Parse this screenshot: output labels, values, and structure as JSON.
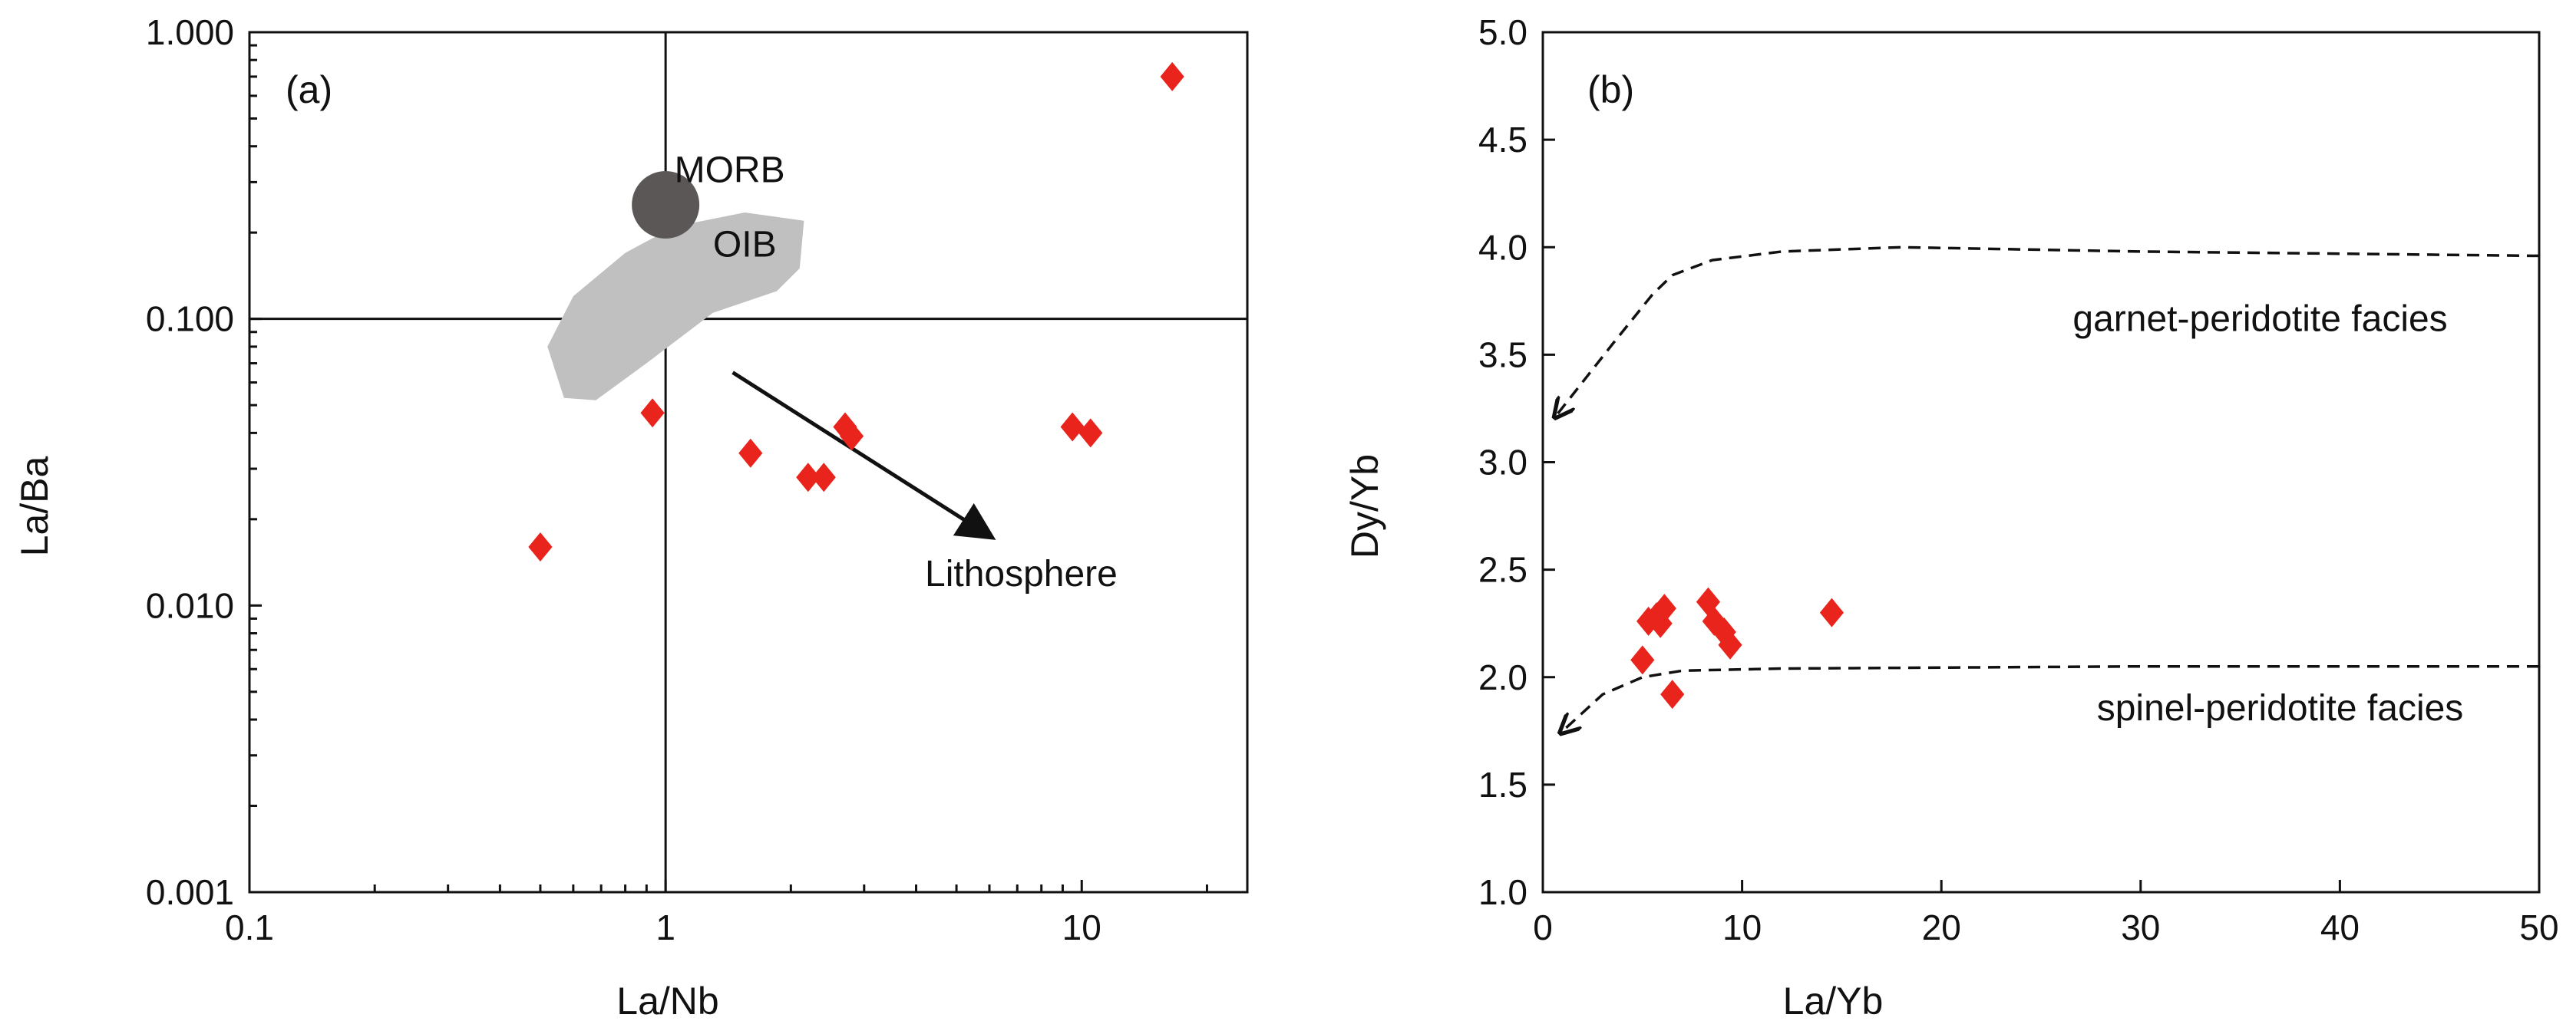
{
  "colors": {
    "marker": "#e8241c",
    "morb": "#5a5756",
    "oib": "#c0c0c0",
    "axis": "#111111"
  },
  "chart_data": [
    {
      "type": "scatter",
      "panel_label": "(a)",
      "xlabel": "La/Nb",
      "ylabel": "La/Ba",
      "xscale": "log",
      "yscale": "log",
      "xlim": [
        0.1,
        25
      ],
      "ylim": [
        0.001,
        1
      ],
      "x_tick_labels": [
        {
          "value": 0.1,
          "label": "0.1"
        },
        {
          "value": 1,
          "label": "1"
        },
        {
          "value": 10,
          "label": "10"
        }
      ],
      "y_tick_labels": [
        {
          "value": 0.001,
          "label": "0.001"
        },
        {
          "value": 0.01,
          "label": "0.010"
        },
        {
          "value": 0.1,
          "label": "0.100"
        },
        {
          "value": 1,
          "label": "1.000"
        }
      ],
      "reference_lines": [
        {
          "orientation": "vertical",
          "value": 1
        },
        {
          "orientation": "horizontal",
          "value": 0.1
        }
      ],
      "points": [
        {
          "x": 0.5,
          "y": 0.016
        },
        {
          "x": 0.93,
          "y": 0.047
        },
        {
          "x": 1.6,
          "y": 0.034
        },
        {
          "x": 2.2,
          "y": 0.028
        },
        {
          "x": 2.4,
          "y": 0.028
        },
        {
          "x": 2.7,
          "y": 0.042
        },
        {
          "x": 2.8,
          "y": 0.039
        },
        {
          "x": 9.5,
          "y": 0.042
        },
        {
          "x": 10.5,
          "y": 0.04
        },
        {
          "x": 16.5,
          "y": 0.7
        }
      ],
      "fields": [
        {
          "name": "MORB",
          "label": "MORB",
          "shape": "circle",
          "center": {
            "x": 1.0,
            "y": 0.25
          },
          "label_at": {
            "x": 1.05,
            "y": 0.3
          }
        },
        {
          "name": "OIB",
          "label": "OIB",
          "shape": "polygon",
          "vertices": [
            [
              0.52,
              0.08
            ],
            [
              0.6,
              0.12
            ],
            [
              0.8,
              0.17
            ],
            [
              1.05,
              0.21
            ],
            [
              1.55,
              0.235
            ],
            [
              2.15,
              0.22
            ],
            [
              2.1,
              0.15
            ],
            [
              1.85,
              0.125
            ],
            [
              1.3,
              0.105
            ],
            [
              0.9,
              0.07
            ],
            [
              0.68,
              0.052
            ],
            [
              0.57,
              0.053
            ]
          ],
          "label_at": {
            "x": 1.3,
            "y": 0.165
          }
        }
      ],
      "annotations": [
        {
          "text": "Lithosphere",
          "x": 4.2,
          "y": 0.0117,
          "arrow": {
            "from": [
              1.45,
              0.065
            ],
            "to": [
              6.0,
              0.0175
            ]
          }
        }
      ]
    },
    {
      "type": "scatter",
      "panel_label": "(b)",
      "xlabel": "La/Yb",
      "ylabel": "Dy/Yb",
      "xlim": [
        0,
        50
      ],
      "ylim": [
        1.0,
        5.0
      ],
      "x_ticks": [
        0,
        10,
        20,
        30,
        40,
        50
      ],
      "x_tick_labels": [
        "0",
        "10",
        "20",
        "30",
        "40",
        "50"
      ],
      "y_ticks": [
        1.0,
        1.5,
        2.0,
        2.5,
        3.0,
        3.5,
        4.0,
        4.5,
        5.0
      ],
      "y_tick_labels": [
        "1.0",
        "1.5",
        "2.0",
        "2.5",
        "3.0",
        "3.5",
        "4.0",
        "4.5",
        "5.0"
      ],
      "points": [
        {
          "x": 5.0,
          "y": 2.08
        },
        {
          "x": 5.3,
          "y": 2.26
        },
        {
          "x": 5.7,
          "y": 2.28
        },
        {
          "x": 5.9,
          "y": 2.25
        },
        {
          "x": 6.1,
          "y": 2.32
        },
        {
          "x": 6.5,
          "y": 1.92
        },
        {
          "x": 8.3,
          "y": 2.35
        },
        {
          "x": 8.6,
          "y": 2.26
        },
        {
          "x": 9.1,
          "y": 2.21
        },
        {
          "x": 9.4,
          "y": 2.15
        },
        {
          "x": 14.5,
          "y": 2.3
        }
      ],
      "curves": [
        {
          "name": "garnet-peridotite facies",
          "label": "garnet-peridotite facies",
          "label_at": {
            "x": 36,
            "y": 3.61
          },
          "path": [
            [
              50,
              3.96
            ],
            [
              30,
              3.98
            ],
            [
              18,
              4.0
            ],
            [
              12,
              3.98
            ],
            [
              8.5,
              3.94
            ],
            [
              6.5,
              3.87
            ],
            [
              5.5,
              3.78
            ],
            [
              3.5,
              3.55
            ],
            [
              0.7,
              3.22
            ]
          ]
        },
        {
          "name": "spinel-peridotite facies",
          "label": "spinel-peridotite facies",
          "label_at": {
            "x": 37,
            "y": 1.8
          },
          "path": [
            [
              50,
              2.05
            ],
            [
              30,
              2.05
            ],
            [
              12,
              2.04
            ],
            [
              7,
              2.03
            ],
            [
              5,
              2.0
            ],
            [
              3,
              1.92
            ],
            [
              1,
              1.75
            ]
          ]
        }
      ]
    }
  ]
}
